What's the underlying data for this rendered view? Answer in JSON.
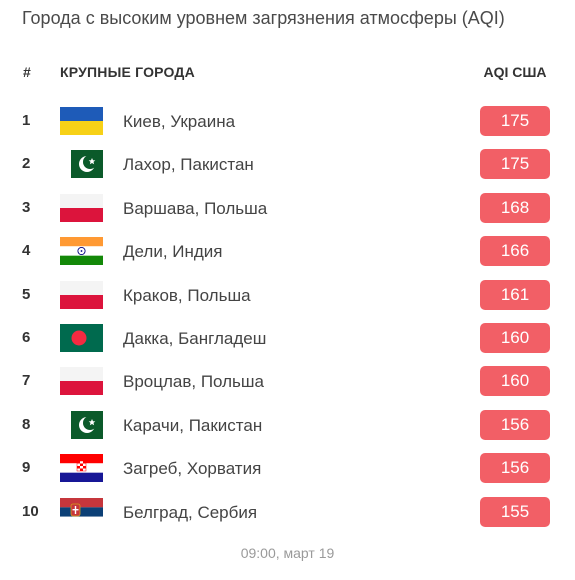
{
  "title": "Города с высоким уровнем загрязнения атмосферы (AQI)",
  "header": {
    "rank": "#",
    "city": "КРУПНЫЕ ГОРОДА",
    "aqi": "AQI США"
  },
  "rows": [
    {
      "rank": "1",
      "city": "Киев, Украина",
      "aqi": "175",
      "flag": "ukraine-flag-icon"
    },
    {
      "rank": "2",
      "city": "Лахор, Пакистан",
      "aqi": "175",
      "flag": "pakistan-flag-icon"
    },
    {
      "rank": "3",
      "city": "Варшава, Польша",
      "aqi": "168",
      "flag": "poland-flag-icon"
    },
    {
      "rank": "4",
      "city": "Дели, Индия",
      "aqi": "166",
      "flag": "india-flag-icon"
    },
    {
      "rank": "5",
      "city": "Краков, Польша",
      "aqi": "161",
      "flag": "poland-flag-icon"
    },
    {
      "rank": "6",
      "city": "Дакка, Бангладеш",
      "aqi": "160",
      "flag": "bangladesh-flag-icon"
    },
    {
      "rank": "7",
      "city": "Вроцлав, Польша",
      "aqi": "160",
      "flag": "poland-flag-icon"
    },
    {
      "rank": "8",
      "city": "Карачи, Пакистан",
      "aqi": "156",
      "flag": "pakistan-flag-icon"
    },
    {
      "rank": "9",
      "city": "Загреб, Хорватия",
      "aqi": "156",
      "flag": "croatia-flag-icon"
    },
    {
      "rank": "10",
      "city": "Белград, Сербия",
      "aqi": "155",
      "flag": "serbia-flag-icon"
    }
  ],
  "timestamp": "09:00, март 19",
  "colors": {
    "aqi_badge": "#f25f66"
  }
}
